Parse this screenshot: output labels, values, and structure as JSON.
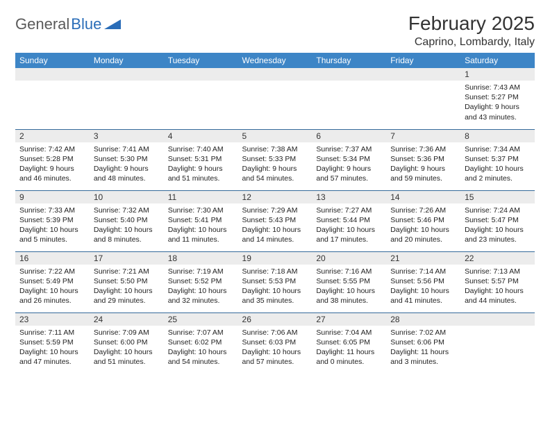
{
  "brand": {
    "part1": "General",
    "part2": "Blue"
  },
  "title": "February 2025",
  "location": "Caprino, Lombardy, Italy",
  "colors": {
    "header_bg": "#3d85c6",
    "header_text": "#ffffff",
    "row_divider": "#34699a",
    "daynum_bg": "#ececec",
    "body_text": "#222222",
    "logo_blue": "#2a6db8",
    "page_bg": "#ffffff"
  },
  "layout": {
    "columns": 7,
    "font_family": "Arial",
    "daynum_fontsize": 12,
    "body_fontsize": 10.5,
    "title_fontsize": 28,
    "location_fontsize": 16,
    "header_fontsize": 12
  },
  "weekdays": [
    "Sunday",
    "Monday",
    "Tuesday",
    "Wednesday",
    "Thursday",
    "Friday",
    "Saturday"
  ],
  "weeks": [
    [
      null,
      null,
      null,
      null,
      null,
      null,
      {
        "n": "1",
        "sunrise": "Sunrise: 7:43 AM",
        "sunset": "Sunset: 5:27 PM",
        "daylight": "Daylight: 9 hours and 43 minutes."
      }
    ],
    [
      {
        "n": "2",
        "sunrise": "Sunrise: 7:42 AM",
        "sunset": "Sunset: 5:28 PM",
        "daylight": "Daylight: 9 hours and 46 minutes."
      },
      {
        "n": "3",
        "sunrise": "Sunrise: 7:41 AM",
        "sunset": "Sunset: 5:30 PM",
        "daylight": "Daylight: 9 hours and 48 minutes."
      },
      {
        "n": "4",
        "sunrise": "Sunrise: 7:40 AM",
        "sunset": "Sunset: 5:31 PM",
        "daylight": "Daylight: 9 hours and 51 minutes."
      },
      {
        "n": "5",
        "sunrise": "Sunrise: 7:38 AM",
        "sunset": "Sunset: 5:33 PM",
        "daylight": "Daylight: 9 hours and 54 minutes."
      },
      {
        "n": "6",
        "sunrise": "Sunrise: 7:37 AM",
        "sunset": "Sunset: 5:34 PM",
        "daylight": "Daylight: 9 hours and 57 minutes."
      },
      {
        "n": "7",
        "sunrise": "Sunrise: 7:36 AM",
        "sunset": "Sunset: 5:36 PM",
        "daylight": "Daylight: 9 hours and 59 minutes."
      },
      {
        "n": "8",
        "sunrise": "Sunrise: 7:34 AM",
        "sunset": "Sunset: 5:37 PM",
        "daylight": "Daylight: 10 hours and 2 minutes."
      }
    ],
    [
      {
        "n": "9",
        "sunrise": "Sunrise: 7:33 AM",
        "sunset": "Sunset: 5:39 PM",
        "daylight": "Daylight: 10 hours and 5 minutes."
      },
      {
        "n": "10",
        "sunrise": "Sunrise: 7:32 AM",
        "sunset": "Sunset: 5:40 PM",
        "daylight": "Daylight: 10 hours and 8 minutes."
      },
      {
        "n": "11",
        "sunrise": "Sunrise: 7:30 AM",
        "sunset": "Sunset: 5:41 PM",
        "daylight": "Daylight: 10 hours and 11 minutes."
      },
      {
        "n": "12",
        "sunrise": "Sunrise: 7:29 AM",
        "sunset": "Sunset: 5:43 PM",
        "daylight": "Daylight: 10 hours and 14 minutes."
      },
      {
        "n": "13",
        "sunrise": "Sunrise: 7:27 AM",
        "sunset": "Sunset: 5:44 PM",
        "daylight": "Daylight: 10 hours and 17 minutes."
      },
      {
        "n": "14",
        "sunrise": "Sunrise: 7:26 AM",
        "sunset": "Sunset: 5:46 PM",
        "daylight": "Daylight: 10 hours and 20 minutes."
      },
      {
        "n": "15",
        "sunrise": "Sunrise: 7:24 AM",
        "sunset": "Sunset: 5:47 PM",
        "daylight": "Daylight: 10 hours and 23 minutes."
      }
    ],
    [
      {
        "n": "16",
        "sunrise": "Sunrise: 7:22 AM",
        "sunset": "Sunset: 5:49 PM",
        "daylight": "Daylight: 10 hours and 26 minutes."
      },
      {
        "n": "17",
        "sunrise": "Sunrise: 7:21 AM",
        "sunset": "Sunset: 5:50 PM",
        "daylight": "Daylight: 10 hours and 29 minutes."
      },
      {
        "n": "18",
        "sunrise": "Sunrise: 7:19 AM",
        "sunset": "Sunset: 5:52 PM",
        "daylight": "Daylight: 10 hours and 32 minutes."
      },
      {
        "n": "19",
        "sunrise": "Sunrise: 7:18 AM",
        "sunset": "Sunset: 5:53 PM",
        "daylight": "Daylight: 10 hours and 35 minutes."
      },
      {
        "n": "20",
        "sunrise": "Sunrise: 7:16 AM",
        "sunset": "Sunset: 5:55 PM",
        "daylight": "Daylight: 10 hours and 38 minutes."
      },
      {
        "n": "21",
        "sunrise": "Sunrise: 7:14 AM",
        "sunset": "Sunset: 5:56 PM",
        "daylight": "Daylight: 10 hours and 41 minutes."
      },
      {
        "n": "22",
        "sunrise": "Sunrise: 7:13 AM",
        "sunset": "Sunset: 5:57 PM",
        "daylight": "Daylight: 10 hours and 44 minutes."
      }
    ],
    [
      {
        "n": "23",
        "sunrise": "Sunrise: 7:11 AM",
        "sunset": "Sunset: 5:59 PM",
        "daylight": "Daylight: 10 hours and 47 minutes."
      },
      {
        "n": "24",
        "sunrise": "Sunrise: 7:09 AM",
        "sunset": "Sunset: 6:00 PM",
        "daylight": "Daylight: 10 hours and 51 minutes."
      },
      {
        "n": "25",
        "sunrise": "Sunrise: 7:07 AM",
        "sunset": "Sunset: 6:02 PM",
        "daylight": "Daylight: 10 hours and 54 minutes."
      },
      {
        "n": "26",
        "sunrise": "Sunrise: 7:06 AM",
        "sunset": "Sunset: 6:03 PM",
        "daylight": "Daylight: 10 hours and 57 minutes."
      },
      {
        "n": "27",
        "sunrise": "Sunrise: 7:04 AM",
        "sunset": "Sunset: 6:05 PM",
        "daylight": "Daylight: 11 hours and 0 minutes."
      },
      {
        "n": "28",
        "sunrise": "Sunrise: 7:02 AM",
        "sunset": "Sunset: 6:06 PM",
        "daylight": "Daylight: 11 hours and 3 minutes."
      },
      null
    ]
  ]
}
